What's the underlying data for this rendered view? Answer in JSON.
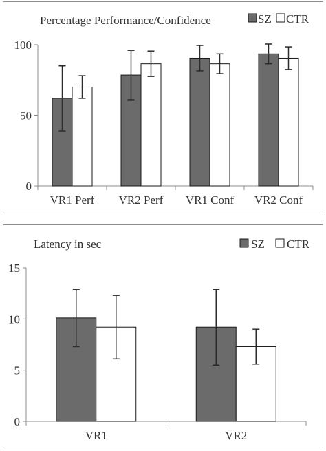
{
  "colors": {
    "sz": "#6b6b6b",
    "ctr": "#ffffff",
    "bar_stroke": "#1a1a1a",
    "axis": "#8c8c8c",
    "error_bar": "#2b2b2b",
    "text": "#333333"
  },
  "chart_data": [
    {
      "type": "bar",
      "title": "Percentage Performance/Confidence",
      "categories": [
        "VR1 Perf",
        "VR2 Perf",
        "VR1 Conf",
        "VR2 Conf"
      ],
      "series": [
        {
          "name": "SZ",
          "values": [
            62,
            78.5,
            90.5,
            93.5
          ],
          "error": [
            23,
            17.5,
            9,
            7
          ]
        },
        {
          "name": "CTR",
          "values": [
            70,
            86.5,
            86.5,
            90.5
          ],
          "error": [
            8,
            9,
            7,
            8
          ]
        }
      ],
      "xlabel": "",
      "ylabel": "",
      "ylim": [
        0,
        100
      ],
      "yticks": [
        "0",
        "50",
        "100"
      ],
      "legend": "top-right",
      "grid": false
    },
    {
      "type": "bar",
      "title": "Latency in sec",
      "categories": [
        "VR1",
        "VR2"
      ],
      "series": [
        {
          "name": "SZ",
          "values": [
            10.1,
            9.2
          ],
          "error": [
            2.8,
            3.7
          ]
        },
        {
          "name": "CTR",
          "values": [
            9.2,
            7.3
          ],
          "error": [
            3.1,
            1.7
          ]
        }
      ],
      "xlabel": "",
      "ylabel": "",
      "ylim": [
        0,
        15
      ],
      "yticks": [
        "0",
        "5",
        "10",
        "15"
      ],
      "legend": "top-right",
      "grid": false
    }
  ]
}
